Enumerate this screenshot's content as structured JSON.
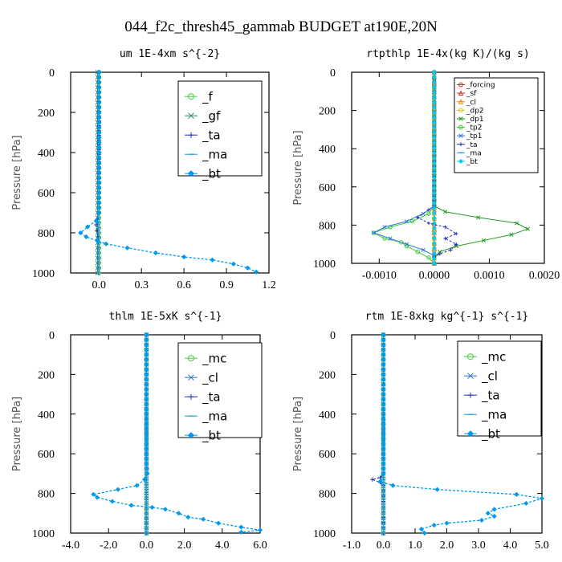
{
  "figure": {
    "title": "044_f2c_thresh45_gammab  BUDGET at190E,20N"
  },
  "chart_data": [
    {
      "type": "line",
      "title": "um  1E-4xm s^{-2}",
      "ylabel": "Pressure [hPa]",
      "xlim": [
        -0.2,
        1.2
      ],
      "ylim": [
        1000,
        0
      ],
      "xticks": [
        0.0,
        0.3,
        0.6,
        0.9,
        1.2
      ],
      "xticklabels": [
        "0.0",
        "0.3",
        "0.6",
        "0.9",
        "1.2"
      ],
      "yticks": [
        0,
        200,
        400,
        600,
        800,
        1000
      ],
      "yticklabels": [
        "0",
        "200",
        "400",
        "600",
        "800",
        "1000"
      ],
      "legend": {
        "placement": "top-right",
        "font_size": "large"
      },
      "series": [
        {
          "name": "_f",
          "color": "#44cc44",
          "marker": "circle",
          "values": [
            [
              0,
              0
            ],
            [
              0,
              100
            ],
            [
              0,
              200
            ],
            [
              0,
              300
            ],
            [
              0,
              400
            ],
            [
              0,
              500
            ],
            [
              0,
              600
            ],
            [
              0,
              700
            ],
            [
              0,
              800
            ],
            [
              0,
              900
            ],
            [
              0,
              1000
            ]
          ]
        },
        {
          "name": "_gf",
          "color": "#338877",
          "marker": "x",
          "values": [
            [
              -0.01,
              0
            ],
            [
              -0.01,
              200
            ],
            [
              -0.01,
              400
            ],
            [
              -0.01,
              600
            ],
            [
              -0.01,
              800
            ],
            [
              -0.01,
              1000
            ]
          ]
        },
        {
          "name": "_ta",
          "color": "#2233bb",
          "marker": "plus",
          "values": [
            [
              0,
              0
            ],
            [
              0,
              700
            ],
            [
              -0.02,
              760
            ],
            [
              0,
              850
            ],
            [
              0,
              1000
            ]
          ]
        },
        {
          "name": "_ma",
          "color": "#2299dd",
          "marker": "dash",
          "values": [
            [
              0,
              0
            ],
            [
              0,
              500
            ],
            [
              0,
              1000
            ]
          ]
        },
        {
          "name": "_bt",
          "color": "#0099ee",
          "marker": "diamond",
          "values": [
            [
              0,
              0
            ],
            [
              0,
              300
            ],
            [
              0,
              600
            ],
            [
              0,
              700
            ],
            [
              -0.02,
              740
            ],
            [
              -0.08,
              770
            ],
            [
              -0.13,
              800
            ],
            [
              -0.09,
              820
            ],
            [
              -0.01,
              840
            ],
            [
              0.05,
              855
            ],
            [
              0.2,
              875
            ],
            [
              0.4,
              900
            ],
            [
              0.6,
              920
            ],
            [
              0.8,
              935
            ],
            [
              0.95,
              955
            ],
            [
              1.05,
              975
            ],
            [
              1.11,
              995
            ]
          ]
        }
      ]
    },
    {
      "type": "line",
      "title": "rtpthlp  1E-4x(kg K)/(kg s)",
      "ylabel": "Pressure [hPa]",
      "xlim": [
        -0.0015,
        0.002
      ],
      "ylim": [
        1000,
        0
      ],
      "xticks": [
        -0.001,
        0.0,
        0.001,
        0.002
      ],
      "xticklabels": [
        "-0.0010",
        "0.0000",
        "0.0010",
        "0.0020"
      ],
      "yticks": [
        0,
        200,
        400,
        600,
        800,
        1000
      ],
      "yticklabels": [
        "0",
        "200",
        "400",
        "600",
        "800",
        "1000"
      ],
      "legend": {
        "placement": "top-right",
        "font_size": "small"
      },
      "series": [
        {
          "name": "_forcing",
          "color": "#dd2222",
          "marker": "circle",
          "values": [
            [
              0,
              0
            ],
            [
              0,
              100
            ],
            [
              0,
              200
            ],
            [
              0,
              300
            ],
            [
              0,
              400
            ],
            [
              0,
              500
            ],
            [
              0,
              600
            ],
            [
              0,
              700
            ],
            [
              0,
              800
            ],
            [
              0,
              900
            ],
            [
              0,
              1000
            ]
          ]
        },
        {
          "name": "_sf",
          "color": "#cc3322",
          "marker": "triangle",
          "values": [
            [
              0,
              0
            ],
            [
              0,
              500
            ],
            [
              0,
              1000
            ]
          ]
        },
        {
          "name": "_cl",
          "color": "#ee8800",
          "marker": "triangle",
          "values": [
            [
              0,
              0
            ],
            [
              0,
              500
            ],
            [
              0,
              1000
            ]
          ]
        },
        {
          "name": "_dp2",
          "color": "#cccc22",
          "marker": "circle",
          "values": [
            [
              0,
              0
            ],
            [
              0,
              500
            ],
            [
              0,
              1000
            ]
          ]
        },
        {
          "name": "_dp1",
          "color": "#229922",
          "marker": "x",
          "values": [
            [
              0,
              0
            ],
            [
              0,
              700
            ],
            [
              0.0002,
              730
            ],
            [
              0.0008,
              760
            ],
            [
              0.0015,
              790
            ],
            [
              0.0017,
              820
            ],
            [
              0.0014,
              850
            ],
            [
              0.0009,
              880
            ],
            [
              0.0004,
              910
            ],
            [
              0.0001,
              940
            ],
            [
              0,
              970
            ],
            [
              0,
              1000
            ]
          ]
        },
        {
          "name": "_tp2",
          "color": "#33cc33",
          "marker": "circle",
          "values": [
            [
              0,
              0
            ],
            [
              0,
              700
            ],
            [
              -0.0001,
              740
            ],
            [
              -0.0004,
              780
            ],
            [
              -0.0008,
              810
            ],
            [
              -0.0011,
              840
            ],
            [
              -0.0009,
              870
            ],
            [
              -0.0006,
              890
            ],
            [
              -0.0005,
              910
            ],
            [
              -0.0003,
              940
            ],
            [
              -0.0001,
              970
            ],
            [
              0,
              1000
            ]
          ]
        },
        {
          "name": "_tp1",
          "color": "#3377dd",
          "marker": "x",
          "values": [
            [
              0,
              0
            ],
            [
              0,
              700
            ],
            [
              -0.0002,
              740
            ],
            [
              -0.0005,
              780
            ],
            [
              -0.0009,
              810
            ],
            [
              -0.0011,
              840
            ],
            [
              -0.0008,
              870
            ],
            [
              -0.0005,
              900
            ],
            [
              -0.0002,
              930
            ],
            [
              0,
              960
            ],
            [
              0,
              1000
            ]
          ]
        },
        {
          "name": "_ta",
          "color": "#2233bb",
          "marker": "plus",
          "values": [
            [
              0,
              0
            ],
            [
              0,
              700
            ],
            [
              -0.0001,
              720
            ],
            [
              -0.0003,
              760
            ],
            [
              -0.0001,
              790
            ],
            [
              0.0002,
              810
            ],
            [
              0.0004,
              845
            ],
            [
              0.0002,
              870
            ],
            [
              0.0004,
              900
            ],
            [
              0.0003,
              930
            ],
            [
              0.0001,
              950
            ],
            [
              0,
              970
            ],
            [
              0,
              1000
            ]
          ]
        },
        {
          "name": "_ma",
          "color": "#2299dd",
          "marker": "dash",
          "values": [
            [
              0,
              0
            ],
            [
              0,
              500
            ],
            [
              0,
              1000
            ]
          ]
        },
        {
          "name": "_bt",
          "color": "#00ccee",
          "marker": "diamond",
          "values": [
            [
              0,
              0
            ],
            [
              0,
              500
            ],
            [
              0,
              1000
            ]
          ]
        }
      ]
    },
    {
      "type": "line",
      "title": "thlm  1E-5xK s^{-1}",
      "ylabel": "Pressure [hPa]",
      "xlim": [
        -4.0,
        6.0
      ],
      "ylim": [
        1000,
        0
      ],
      "xticks": [
        -4.0,
        -2.0,
        0.0,
        2.0,
        4.0,
        6.0
      ],
      "xticklabels": [
        "-4.0",
        "-2.0",
        "0.0",
        "2.0",
        "4.0",
        "6.0"
      ],
      "yticks": [
        0,
        200,
        400,
        600,
        800,
        1000
      ],
      "yticklabels": [
        "0",
        "200",
        "400",
        "600",
        "800",
        "1000"
      ],
      "legend": {
        "placement": "top-right",
        "font_size": "large"
      },
      "series": [
        {
          "name": "_mc",
          "color": "#44cc44",
          "marker": "circle",
          "values": [
            [
              0,
              0
            ],
            [
              0,
              100
            ],
            [
              0,
              200
            ],
            [
              0,
              300
            ],
            [
              0,
              400
            ],
            [
              0,
              500
            ],
            [
              0,
              600
            ],
            [
              0,
              700
            ],
            [
              0,
              800
            ],
            [
              0,
              900
            ],
            [
              0,
              1000
            ]
          ]
        },
        {
          "name": "_cl",
          "color": "#2277cc",
          "marker": "x",
          "values": [
            [
              0,
              0
            ],
            [
              0,
              500
            ],
            [
              0,
              1000
            ]
          ]
        },
        {
          "name": "_ta",
          "color": "#2233bb",
          "marker": "plus",
          "values": [
            [
              0,
              0
            ],
            [
              0,
              1000
            ]
          ]
        },
        {
          "name": "_ma",
          "color": "#2299dd",
          "marker": "dash",
          "values": [
            [
              0,
              0
            ],
            [
              0,
              1000
            ]
          ]
        },
        {
          "name": "_bt",
          "color": "#0099ee",
          "marker": "diamond",
          "values": [
            [
              0,
              0
            ],
            [
              0,
              200
            ],
            [
              0,
              400
            ],
            [
              0,
              600
            ],
            [
              0,
              650
            ],
            [
              0.05,
              700
            ],
            [
              -0.1,
              730
            ],
            [
              -0.5,
              760
            ],
            [
              -1.5,
              780
            ],
            [
              -2.8,
              805
            ],
            [
              -2.6,
              820
            ],
            [
              -1.8,
              840
            ],
            [
              -0.8,
              860
            ],
            [
              0.3,
              870
            ],
            [
              1.0,
              880
            ],
            [
              1.7,
              900
            ],
            [
              2.2,
              920
            ],
            [
              3.0,
              930
            ],
            [
              3.8,
              950
            ],
            [
              5.0,
              970
            ],
            [
              6.0,
              985
            ],
            [
              5.0,
              995
            ]
          ]
        }
      ]
    },
    {
      "type": "line",
      "title": "rtm  1E-8xkg kg^{-1} s^{-1}",
      "ylabel": "Pressure [hPa]",
      "xlim": [
        -1.0,
        5.0
      ],
      "ylim": [
        1000,
        0
      ],
      "xticks": [
        -1.0,
        0.0,
        1.0,
        2.0,
        3.0,
        4.0,
        5.0
      ],
      "xticklabels": [
        "-1.0",
        "0.0",
        "1.0",
        "2.0",
        "3.0",
        "4.0",
        "5.0"
      ],
      "yticks": [
        0,
        200,
        400,
        600,
        800,
        1000
      ],
      "yticklabels": [
        "0",
        "200",
        "400",
        "600",
        "800",
        "1000"
      ],
      "legend": {
        "placement": "top-right",
        "font_size": "large"
      },
      "series": [
        {
          "name": "_mc",
          "color": "#44cc44",
          "marker": "circle",
          "values": [
            [
              0,
              0
            ],
            [
              0,
              100
            ],
            [
              0,
              200
            ],
            [
              0,
              300
            ],
            [
              0,
              400
            ],
            [
              0,
              500
            ],
            [
              0,
              600
            ],
            [
              0,
              700
            ],
            [
              0,
              800
            ],
            [
              0,
              900
            ],
            [
              0,
              1000
            ]
          ]
        },
        {
          "name": "_cl",
          "color": "#2277cc",
          "marker": "x",
          "values": [
            [
              0,
              0
            ],
            [
              0,
              500
            ],
            [
              0,
              1000
            ]
          ]
        },
        {
          "name": "_ta",
          "color": "#2233bb",
          "marker": "plus",
          "values": [
            [
              0,
              0
            ],
            [
              0,
              700
            ],
            [
              -0.1,
              720
            ],
            [
              -0.35,
              730
            ],
            [
              -0.1,
              745
            ],
            [
              0,
              760
            ],
            [
              0,
              1000
            ]
          ]
        },
        {
          "name": "_ma",
          "color": "#2299dd",
          "marker": "dash",
          "values": [
            [
              0,
              0
            ],
            [
              0,
              1000
            ]
          ]
        },
        {
          "name": "_bt",
          "color": "#0099ee",
          "marker": "diamond",
          "values": [
            [
              0,
              0
            ],
            [
              0,
              300
            ],
            [
              0,
              600
            ],
            [
              0,
              700
            ],
            [
              -0.1,
              740
            ],
            [
              0.3,
              760
            ],
            [
              1.7,
              780
            ],
            [
              4.2,
              805
            ],
            [
              5.0,
              825
            ],
            [
              4.5,
              850
            ],
            [
              3.5,
              880
            ],
            [
              3.3,
              900
            ],
            [
              3.5,
              915
            ],
            [
              3.1,
              935
            ],
            [
              2.0,
              950
            ],
            [
              1.6,
              960
            ],
            [
              1.2,
              980
            ],
            [
              1.3,
              1000
            ]
          ]
        }
      ]
    }
  ]
}
